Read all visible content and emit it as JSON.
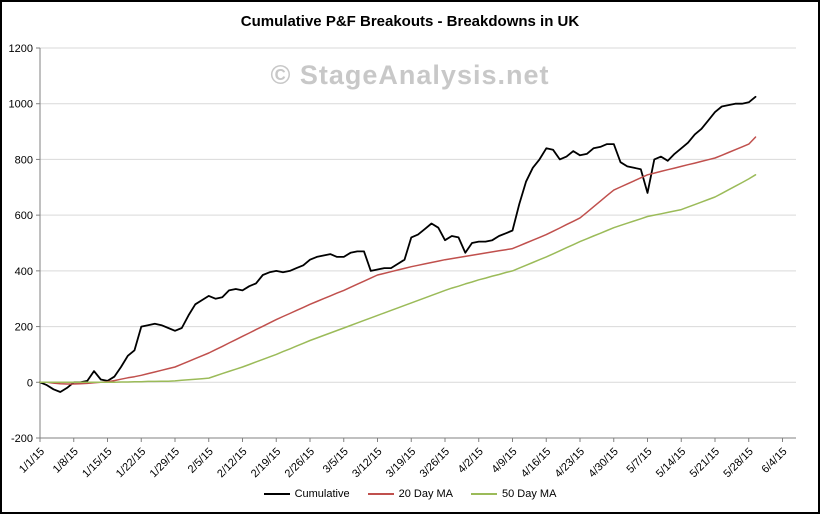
{
  "watermark": "© StageAnalysis.net",
  "chart_data": {
    "type": "line",
    "title": "Cumulative P&F Breakouts - Breakdowns in UK",
    "xlabel": "",
    "ylabel": "",
    "ylim": [
      -200,
      1200
    ],
    "y_tick_step": 200,
    "x_domain": [
      0,
      112
    ],
    "x_tick_interval_points": 5,
    "grid": "horizontal",
    "legend_position": "bottom",
    "x_tick_labels": [
      "1/1/15",
      "1/8/15",
      "1/15/15",
      "1/22/15",
      "1/29/15",
      "2/5/15",
      "2/12/15",
      "2/19/15",
      "2/26/15",
      "3/5/15",
      "3/12/15",
      "3/19/15",
      "3/26/15",
      "4/2/15",
      "4/9/15",
      "4/16/15",
      "4/23/15",
      "4/30/15",
      "5/7/15",
      "5/14/15",
      "5/21/15",
      "5/28/15",
      "6/4/15"
    ],
    "colors": {
      "cumulative": "#000000",
      "ma20": "#C0504D",
      "ma50": "#9BBB59",
      "gridline": "#D9D9D9",
      "axis": "#808080",
      "watermark": "#C8C8C8",
      "title": "#000000",
      "background": "#FFFFFF"
    },
    "series": [
      {
        "name": "Cumulative",
        "color": "#000000",
        "values": [
          0,
          -10,
          -25,
          -35,
          -20,
          0,
          0,
          5,
          40,
          10,
          5,
          20,
          55,
          95,
          115,
          200,
          205,
          210,
          205,
          195,
          185,
          195,
          240,
          280,
          295,
          310,
          300,
          305,
          330,
          335,
          330,
          345,
          355,
          385,
          395,
          400,
          395,
          400,
          410,
          420,
          440,
          450,
          455,
          460,
          450,
          450,
          465,
          470,
          470,
          400,
          405,
          410,
          410,
          425,
          440,
          520,
          530,
          550,
          570,
          555,
          510,
          525,
          520,
          465,
          500,
          505,
          505,
          510,
          525,
          535,
          545,
          640,
          720,
          770,
          800,
          840,
          835,
          800,
          810,
          830,
          815,
          820,
          840,
          845,
          855,
          855,
          790,
          775,
          770,
          765,
          680,
          800,
          810,
          795,
          820,
          840,
          860,
          890,
          910,
          940,
          970,
          990,
          995,
          1000,
          1000,
          1005,
          1025
        ]
      },
      {
        "name": "20 Day MA",
        "color": "#C0504D",
        "values": [
          0,
          0,
          -3,
          -5,
          -6,
          -6,
          -5,
          -4,
          -2,
          0,
          2,
          6,
          11,
          16,
          20,
          25,
          31,
          37,
          43,
          49,
          55,
          65,
          75,
          85,
          95,
          105,
          117,
          129,
          141,
          153,
          165,
          177,
          189,
          201,
          213,
          225,
          236,
          247,
          258,
          269,
          280,
          290,
          300,
          310,
          320,
          330,
          341,
          352,
          363,
          374,
          385,
          391,
          397,
          403,
          409,
          415,
          420,
          425,
          430,
          435,
          440,
          444,
          448,
          452,
          456,
          460,
          464,
          468,
          472,
          476,
          480,
          490,
          500,
          510,
          520,
          530,
          542,
          554,
          566,
          578,
          590,
          610,
          630,
          650,
          670,
          690,
          701,
          712,
          723,
          734,
          745,
          751,
          757,
          763,
          769,
          775,
          781,
          787,
          793,
          799,
          805,
          815,
          825,
          835,
          845,
          855,
          880
        ]
      },
      {
        "name": "50 Day MA",
        "color": "#9BBB59",
        "values": [
          0,
          0,
          0,
          0,
          0,
          0,
          0,
          0,
          0,
          0,
          0,
          0,
          1,
          1,
          2,
          2,
          3,
          3,
          4,
          4,
          5,
          7,
          9,
          11,
          13,
          15,
          23,
          31,
          39,
          47,
          55,
          64,
          73,
          82,
          91,
          100,
          110,
          120,
          130,
          140,
          150,
          159,
          168,
          177,
          186,
          195,
          204,
          213,
          222,
          231,
          240,
          249,
          258,
          267,
          276,
          285,
          294,
          303,
          312,
          321,
          330,
          338,
          345,
          353,
          360,
          368,
          374,
          381,
          387,
          394,
          400,
          410,
          420,
          430,
          440,
          450,
          461,
          472,
          483,
          494,
          505,
          515,
          525,
          535,
          545,
          555,
          563,
          571,
          579,
          587,
          595,
          600,
          605,
          610,
          615,
          620,
          629,
          638,
          647,
          656,
          665,
          678,
          691,
          704,
          717,
          730,
          745
        ]
      }
    ]
  }
}
